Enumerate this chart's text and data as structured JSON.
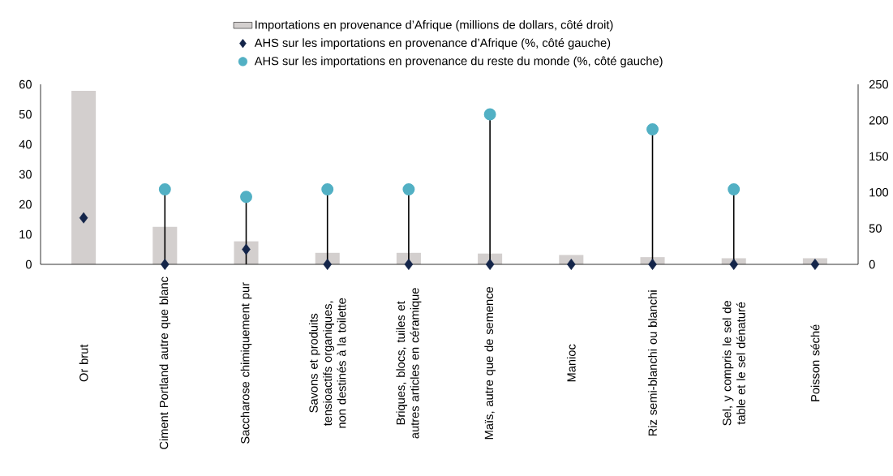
{
  "chart_data": {
    "type": "bar",
    "categories": [
      "Or brut",
      "Ciment Portland autre que blanc",
      "Saccharose chimiquement pur",
      "Savons et produits tensioactifs organiques, non destinés à la toilette",
      "Briques, blocs, tuiles et autres articles en céramique",
      "Maïs, autre que de semence",
      "Manioc",
      "Riz semi-blanchi ou blanchi",
      "Sel, y compris le sel de table et le sel dénaturé",
      "Poisson séché"
    ],
    "series": [
      {
        "name": "Importations en provenance d’Afrique (millions de dollars, côté droit)",
        "axis": "y2",
        "color": "#d3cfce",
        "values": [
          241,
          52,
          32,
          16,
          16,
          15,
          13,
          10,
          8.5,
          8.5
        ]
      },
      {
        "name": "AHS sur les importations en provenance d’Afrique (%, côté gauche)",
        "type": "scatter",
        "marker": "diamond",
        "color": "#14254a",
        "values": [
          15.5,
          0,
          5,
          0,
          0,
          0,
          0,
          0,
          0,
          0
        ]
      },
      {
        "name": "AHS sur les importations en provenance du reste du monde (%, côté gauche)",
        "type": "lollipop",
        "marker": "circle",
        "color": "#52b0c4",
        "values": [
          null,
          25,
          22.5,
          25,
          25,
          50,
          null,
          45,
          25,
          null
        ]
      }
    ],
    "ylim": [
      0,
      60
    ],
    "yticks": [
      0,
      10,
      20,
      30,
      40,
      50,
      60
    ],
    "y2lim": [
      0,
      250
    ],
    "y2ticks": [
      0,
      50,
      100,
      150,
      200,
      250
    ],
    "legend": "top"
  }
}
